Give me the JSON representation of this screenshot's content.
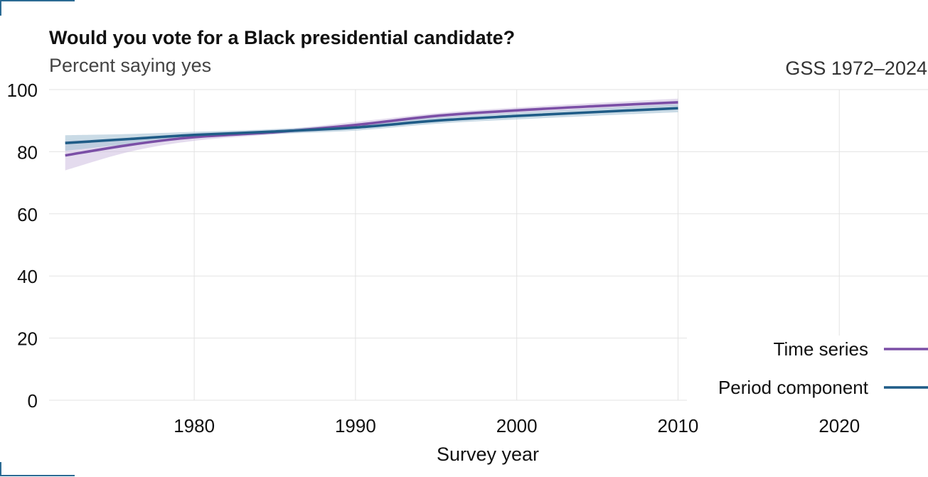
{
  "chart_data": {
    "type": "line",
    "title": "Would you vote for a Black presidential candidate?",
    "subtitle": "Percent saying yes",
    "caption": "GSS 1972–2024",
    "xlabel": "Survey year",
    "ylabel": "",
    "xlim": [
      1971,
      2025.5
    ],
    "ylim": [
      0,
      100
    ],
    "x_ticks": [
      1980,
      1990,
      2000,
      2010,
      2020
    ],
    "y_ticks": [
      0,
      20,
      40,
      60,
      80,
      100
    ],
    "grid": true,
    "legend_position": "bottom-right",
    "series": [
      {
        "name": "Time series",
        "color": "#7b4fa6",
        "band_color": "#cdbde0",
        "x": [
          1972,
          1976,
          1980,
          1985,
          1990,
          1995,
          2000,
          2005,
          2010
        ],
        "values": [
          78.8,
          82.2,
          84.7,
          86.3,
          88.6,
          91.5,
          93.3,
          94.7,
          95.9
        ],
        "lower": [
          74.0,
          80.0,
          83.5,
          85.6,
          87.6,
          90.6,
          92.4,
          93.7,
          94.7
        ],
        "upper": [
          83.5,
          84.3,
          85.9,
          87.0,
          89.6,
          92.4,
          94.2,
          95.7,
          97.1
        ]
      },
      {
        "name": "Period component",
        "color": "#1f5c87",
        "band_color": "#a7c3d6",
        "x": [
          1972,
          1976,
          1980,
          1985,
          1990,
          1995,
          2000,
          2005,
          2010
        ],
        "values": [
          82.8,
          84.1,
          85.4,
          86.5,
          87.8,
          90.0,
          91.5,
          92.8,
          94.0
        ],
        "lower": [
          80.3,
          82.5,
          84.4,
          85.7,
          86.8,
          89.0,
          90.4,
          91.6,
          92.7
        ],
        "upper": [
          85.3,
          85.7,
          86.4,
          87.3,
          88.8,
          91.0,
          92.6,
          94.0,
          95.3
        ]
      }
    ]
  }
}
